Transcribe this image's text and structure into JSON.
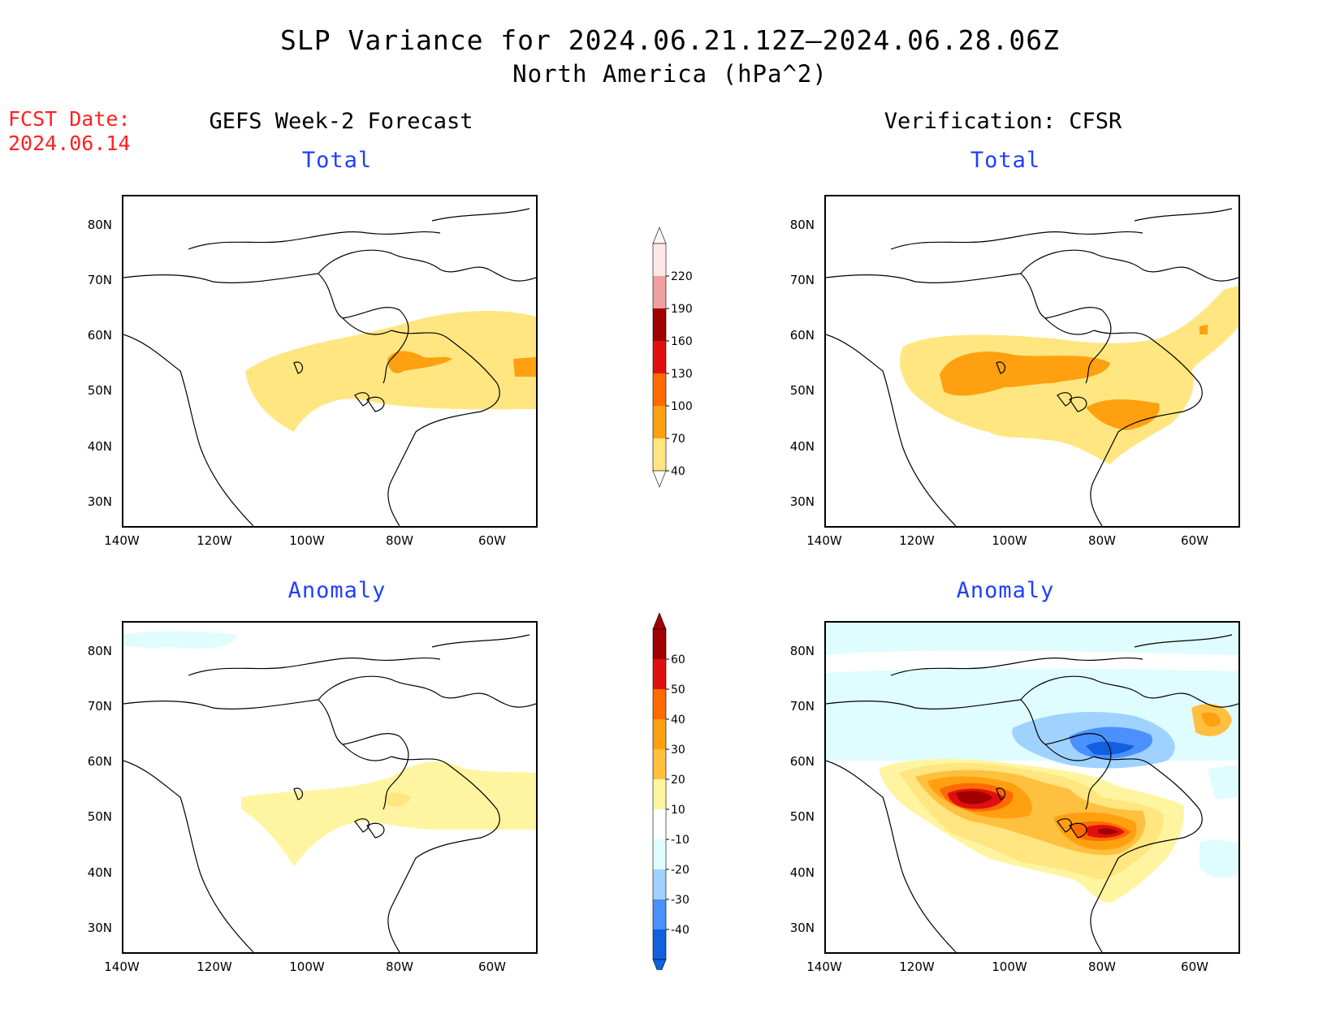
{
  "header": {
    "title": "SLP Variance for 2024.06.21.12Z—2024.06.28.06Z",
    "subtitle": "North America (hPa^2)",
    "fcst_line1": "FCST Date:",
    "fcst_line2": "2024.06.14"
  },
  "left_column": {
    "heading": "GEFS Week-2 Forecast"
  },
  "right_column": {
    "heading": "Verification: CFSR"
  },
  "panels": {
    "tl": {
      "label": "Total"
    },
    "tr": {
      "label": "Total"
    },
    "bl": {
      "label": "Anomaly"
    },
    "br": {
      "label": "Anomaly"
    }
  },
  "axes": {
    "lat_ticks": [
      "80N",
      "70N",
      "60N",
      "50N",
      "40N",
      "30N"
    ],
    "lon_ticks": [
      "140W",
      "120W",
      "100W",
      "80W",
      "60W"
    ]
  },
  "colorbar_total": {
    "labels": [
      "220",
      "190",
      "160",
      "130",
      "100",
      "70",
      "40"
    ],
    "colors": [
      "#fde8e8",
      "#f0a0a0",
      "#a00000",
      "#e01010",
      "#ff6a00",
      "#ffa010",
      "#ffe680"
    ]
  },
  "colorbar_anomaly": {
    "labels": [
      "60",
      "50",
      "40",
      "30",
      "20",
      "10",
      "-10",
      "-20",
      "-30",
      "-40"
    ],
    "colors": [
      "#a00000",
      "#e01010",
      "#ff6a00",
      "#ffa010",
      "#ffc040",
      "#fff5a0",
      "#ffffff",
      "#dffcff",
      "#a0d2ff",
      "#4a90ff",
      "#1060e0"
    ]
  },
  "legend_colors": {
    "yellow": "#ffe680",
    "orange": "#ffa010",
    "deep_orange": "#ff6a00",
    "red": "#e01010",
    "dark_red": "#a00000",
    "pale_cyan": "#dffcff",
    "light_blue": "#a0d2ff",
    "blue": "#4a90ff",
    "deep_blue": "#1060e0"
  }
}
